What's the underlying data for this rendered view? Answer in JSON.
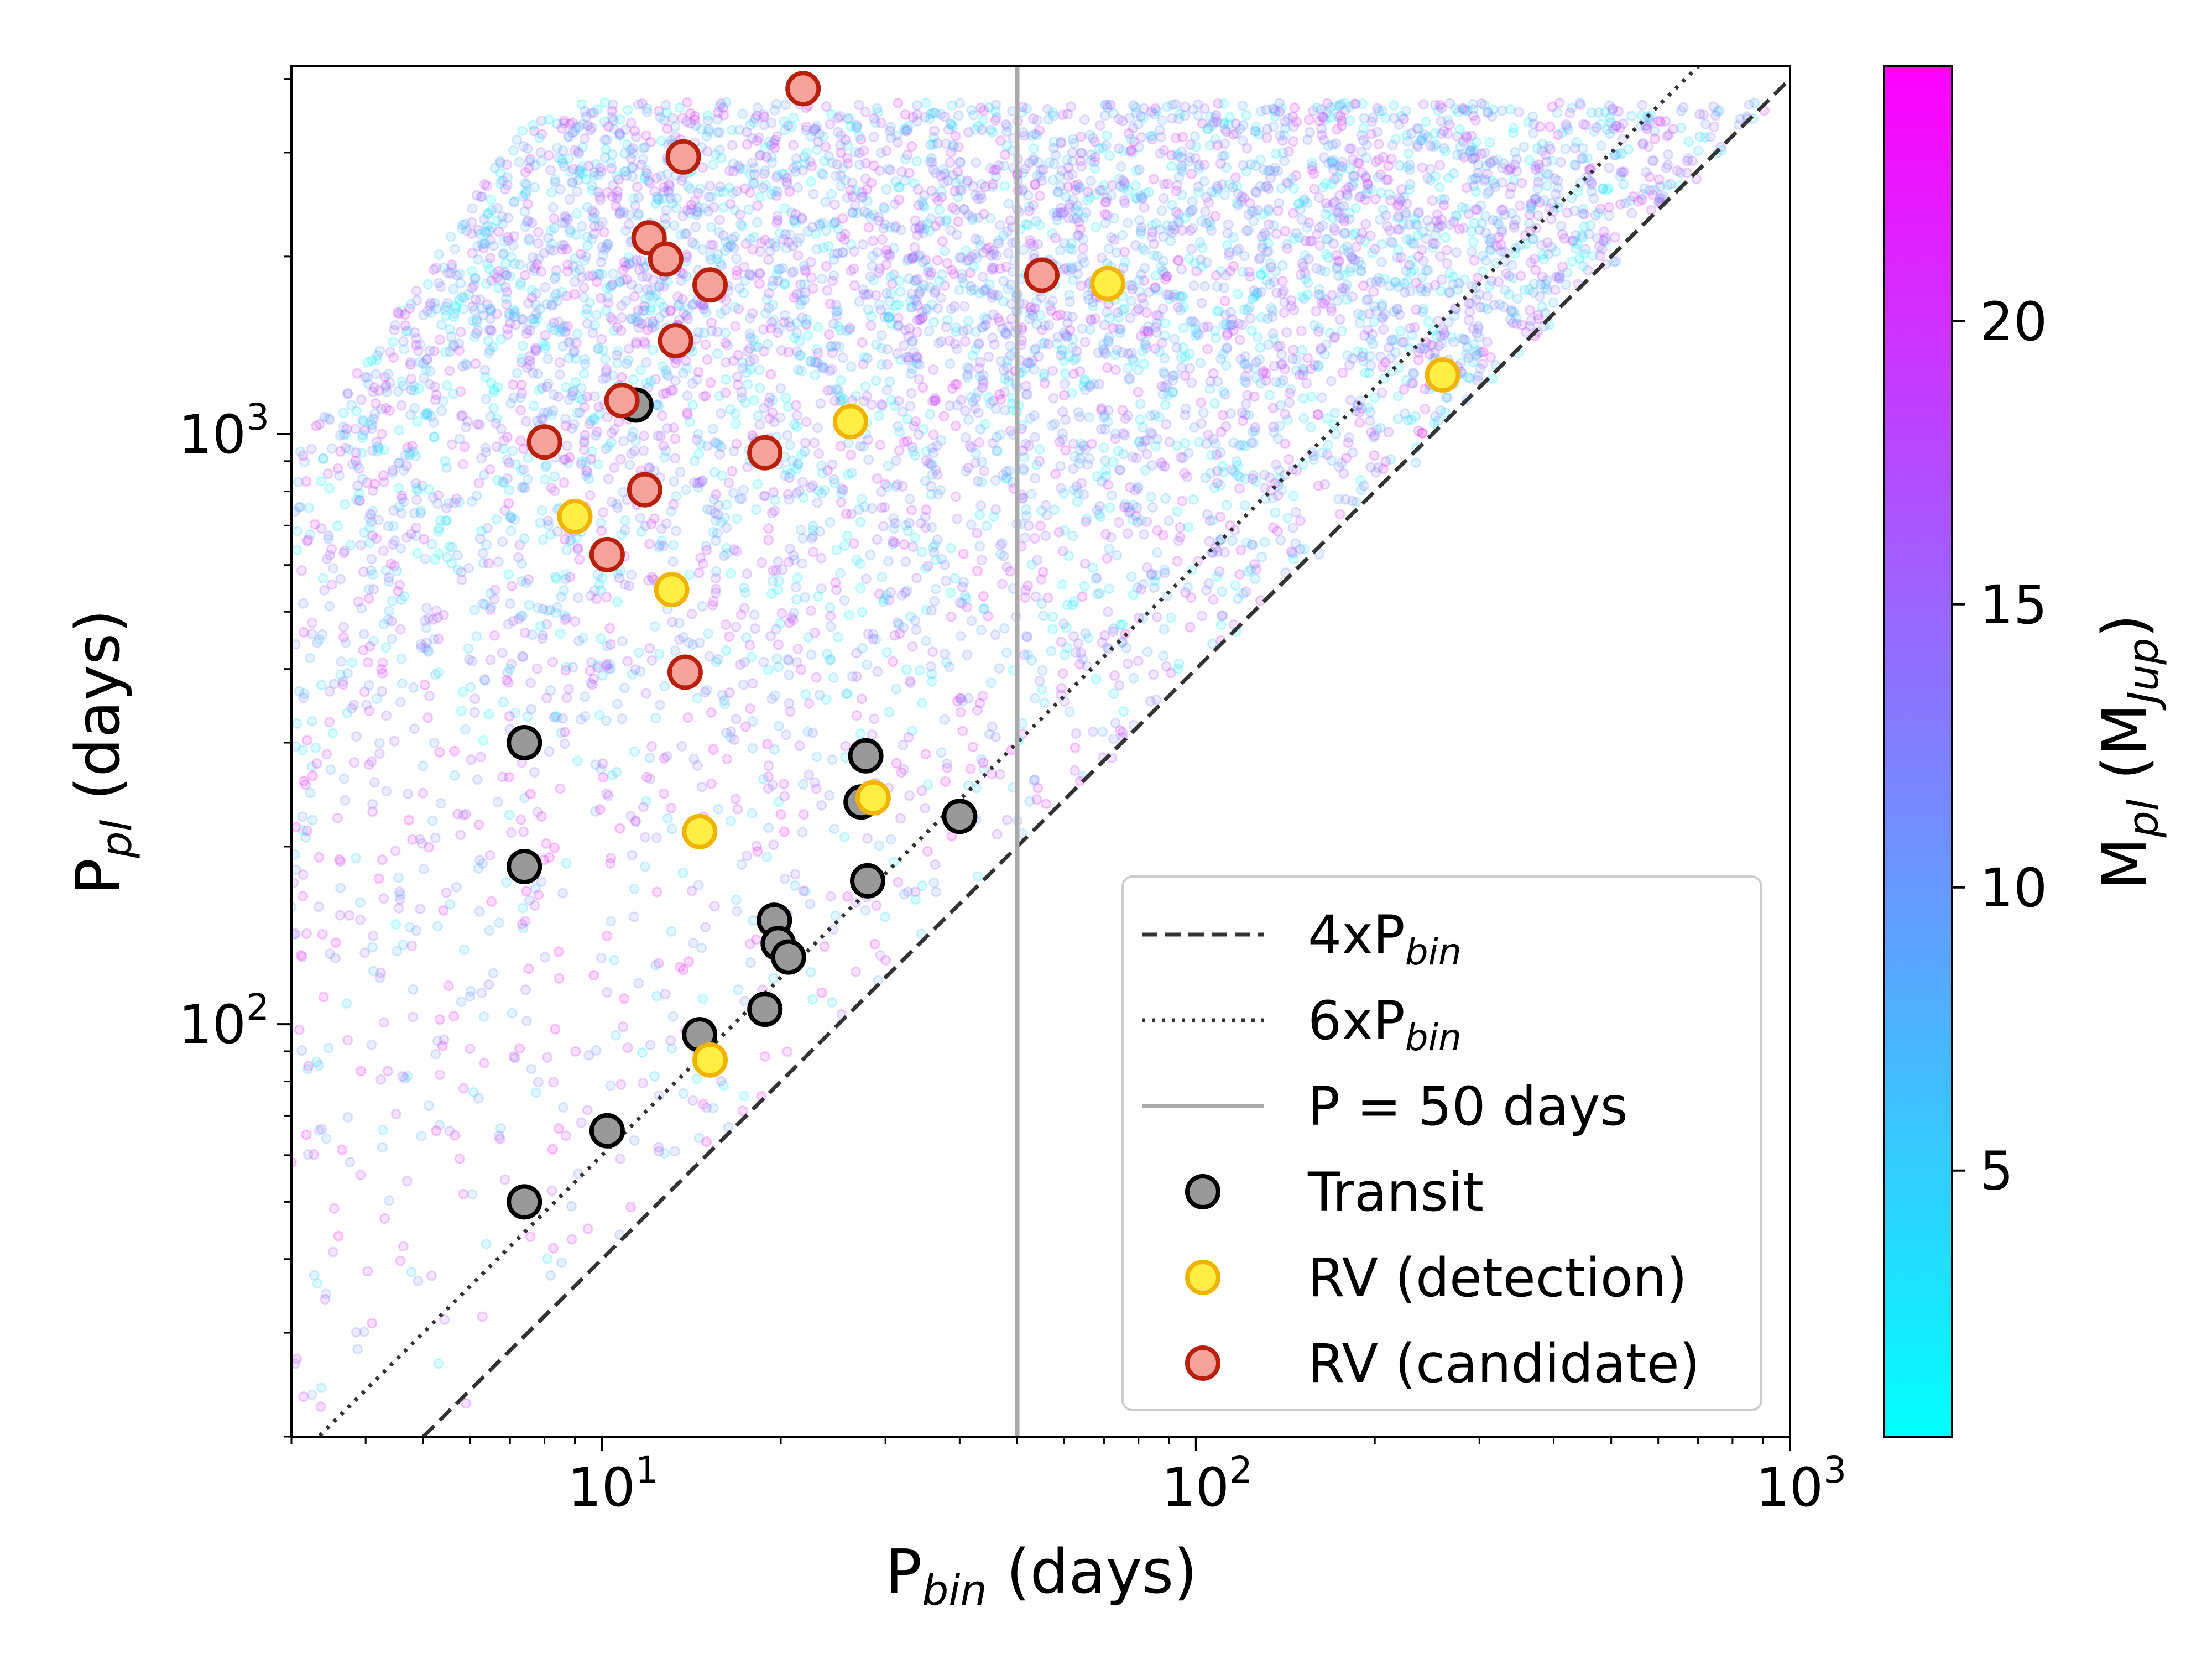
{
  "chart_data": {
    "type": "scatter",
    "xlabel": {
      "main": "P",
      "sub": "bin",
      "rest": " (days)"
    },
    "ylabel": {
      "main": "P",
      "sub": "pl",
      "rest": " (days)"
    },
    "x_scale": "log",
    "y_scale": "log",
    "xlim": [
      3,
      1000
    ],
    "ylim": [
      20,
      4200
    ],
    "x_ticks": [
      {
        "value": 10,
        "base": "10",
        "exp": "1"
      },
      {
        "value": 100,
        "base": "10",
        "exp": "2"
      },
      {
        "value": 1000,
        "base": "10",
        "exp": "3"
      }
    ],
    "y_ticks": [
      {
        "value": 100,
        "base": "10",
        "exp": "2"
      },
      {
        "value": 1000,
        "base": "10",
        "exp": "3"
      }
    ],
    "colorbar": {
      "label": {
        "main": "M",
        "sub": "pl",
        "rest_open": " (M",
        "sub2": "Jup",
        "rest_close": ")"
      },
      "range": [
        0.3,
        24.5
      ],
      "ticks": [
        5,
        10,
        15,
        20
      ],
      "colors": [
        "#00ffff",
        "#ff00ff"
      ]
    },
    "reference_lines": [
      {
        "name": "4xP_bin",
        "factor": 4,
        "style": "dashed",
        "color": "#333333"
      },
      {
        "name": "6xP_bin",
        "factor": 6,
        "style": "dotted",
        "color": "#333333"
      },
      {
        "name": "P = 50 days",
        "x": 50,
        "style": "solid",
        "color": "#aaaaaa"
      }
    ],
    "simulated_population": {
      "description_count": 6000,
      "pl_period_max": 3650,
      "alpha": 0.15
    },
    "series": [
      {
        "name": "Transit",
        "fill": "#999999",
        "edge": "#000000",
        "points": [
          {
            "x": 7.4,
            "y": 300
          },
          {
            "x": 7.4,
            "y": 185
          },
          {
            "x": 7.4,
            "y": 50
          },
          {
            "x": 10.2,
            "y": 66
          },
          {
            "x": 11.4,
            "y": 1120
          },
          {
            "x": 14.6,
            "y": 96
          },
          {
            "x": 18.8,
            "y": 106
          },
          {
            "x": 19.5,
            "y": 150
          },
          {
            "x": 19.8,
            "y": 137
          },
          {
            "x": 20.6,
            "y": 130
          },
          {
            "x": 27.3,
            "y": 238
          },
          {
            "x": 27.8,
            "y": 285
          },
          {
            "x": 28.0,
            "y": 175
          },
          {
            "x": 40.0,
            "y": 225
          }
        ]
      },
      {
        "name": "RV (detection)",
        "fill": "#ffee44",
        "edge": "#f0b400",
        "points": [
          {
            "x": 9.0,
            "y": 725
          },
          {
            "x": 13.1,
            "y": 545
          },
          {
            "x": 14.6,
            "y": 212
          },
          {
            "x": 15.2,
            "y": 87
          },
          {
            "x": 26.2,
            "y": 1050
          },
          {
            "x": 28.6,
            "y": 242
          },
          {
            "x": 71,
            "y": 1800
          },
          {
            "x": 260,
            "y": 1260
          }
        ]
      },
      {
        "name": "RV (candidate)",
        "fill": "#f5a39a",
        "edge": "#b8200c",
        "points": [
          {
            "x": 8.0,
            "y": 970
          },
          {
            "x": 10.2,
            "y": 625
          },
          {
            "x": 10.8,
            "y": 1140
          },
          {
            "x": 11.8,
            "y": 805
          },
          {
            "x": 12.0,
            "y": 2150
          },
          {
            "x": 12.8,
            "y": 1980
          },
          {
            "x": 13.3,
            "y": 1440
          },
          {
            "x": 13.7,
            "y": 2950
          },
          {
            "x": 13.8,
            "y": 395
          },
          {
            "x": 15.2,
            "y": 1790
          },
          {
            "x": 18.8,
            "y": 930
          },
          {
            "x": 21.8,
            "y": 3850
          },
          {
            "x": 55,
            "y": 1860
          }
        ]
      }
    ],
    "legend": {
      "position": "bottom-right",
      "entries": [
        {
          "kind": "line",
          "style": "dashed",
          "main": "4xP",
          "sub": "bin"
        },
        {
          "kind": "line",
          "style": "dotted",
          "main": "6xP",
          "sub": "bin"
        },
        {
          "kind": "line",
          "style": "solid-gray",
          "main": "P = 50 days",
          "sub": ""
        },
        {
          "kind": "marker",
          "series": 0,
          "main": "Transit",
          "sub": ""
        },
        {
          "kind": "marker",
          "series": 1,
          "main": "RV (detection)",
          "sub": ""
        },
        {
          "kind": "marker",
          "series": 2,
          "main": "RV (candidate)",
          "sub": ""
        }
      ]
    }
  }
}
